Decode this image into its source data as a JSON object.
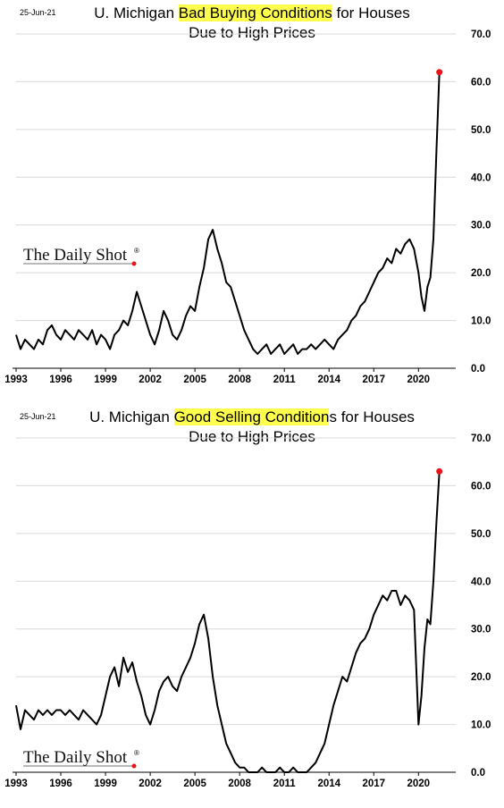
{
  "charts": [
    {
      "date": "25-Jun-21",
      "title_before": "U. Michigan ",
      "title_highlight": "Bad Buying Conditions",
      "title_after": " for Houses",
      "title_line2": "Due to High Prices",
      "brand": "The Daily Shot",
      "brand_mark": "®"
    },
    {
      "date": "25-Jun-21",
      "title_before": "U. Michigan ",
      "title_highlight": "Good Selling Condition",
      "title_after": "s for Houses",
      "title_line2": "Due to High Prices",
      "brand": "The Daily Shot",
      "brand_mark": "®"
    }
  ],
  "chart_data": [
    {
      "type": "line",
      "title": "U. Michigan Bad Buying Conditions for Houses Due to High Prices",
      "x_ticks": [
        "1993",
        "1996",
        "1999",
        "2002",
        "2005",
        "2008",
        "2011",
        "2014",
        "2017",
        "2020"
      ],
      "y_ticks": [
        "0.0",
        "10.0",
        "20.0",
        "30.0",
        "40.0",
        "50.0",
        "60.0",
        "70.0"
      ],
      "xlim": [
        1993,
        2022.5
      ],
      "ylim": [
        0,
        70
      ],
      "grid": true,
      "line_color": "#000000",
      "marker_color": "#e8141b",
      "series": [
        {
          "x": [
            1993,
            1993.3,
            1993.6,
            1993.9,
            1994.2,
            1994.5,
            1994.8,
            1995.1,
            1995.4,
            1995.7,
            1996,
            1996.3,
            1996.6,
            1996.9,
            1997.2,
            1997.5,
            1997.8,
            1998.1,
            1998.4,
            1998.7,
            1999,
            1999.3,
            1999.6,
            1999.9,
            2000.2,
            2000.5,
            2000.8,
            2001.1,
            2001.4,
            2001.7,
            2002,
            2002.3,
            2002.6,
            2002.9,
            2003.2,
            2003.5,
            2003.8,
            2004.1,
            2004.4,
            2004.7,
            2005,
            2005.3,
            2005.6,
            2005.9,
            2006.2,
            2006.5,
            2006.8,
            2007.1,
            2007.4,
            2007.7,
            2008,
            2008.3,
            2008.6,
            2008.9,
            2009.2,
            2009.5,
            2009.8,
            2010.1,
            2010.4,
            2010.7,
            2011,
            2011.3,
            2011.6,
            2011.9,
            2012.2,
            2012.5,
            2012.8,
            2013.1,
            2013.4,
            2013.7,
            2014,
            2014.3,
            2014.6,
            2014.9,
            2015.2,
            2015.5,
            2015.8,
            2016.1,
            2016.4,
            2016.7,
            2017,
            2017.3,
            2017.6,
            2017.9,
            2018.2,
            2018.5,
            2018.8,
            2019.1,
            2019.4,
            2019.7,
            2020,
            2020.2,
            2020.4,
            2020.6,
            2020.8,
            2021,
            2021.2,
            2021.4
          ],
          "y": [
            7,
            4,
            6,
            5,
            4,
            6,
            5,
            8,
            9,
            7,
            6,
            8,
            7,
            6,
            8,
            7,
            6,
            8,
            5,
            7,
            6,
            4,
            7,
            8,
            10,
            9,
            12,
            16,
            13,
            10,
            7,
            5,
            8,
            12,
            10,
            7,
            6,
            8,
            11,
            13,
            12,
            17,
            21,
            27,
            29,
            25,
            22,
            18,
            17,
            14,
            11,
            8,
            6,
            4,
            3,
            4,
            5,
            3,
            4,
            5,
            3,
            4,
            5,
            3,
            4,
            4,
            5,
            4,
            5,
            6,
            5,
            4,
            6,
            7,
            8,
            10,
            11,
            13,
            14,
            16,
            18,
            20,
            21,
            23,
            22,
            25,
            24,
            26,
            27,
            25,
            20,
            15,
            12,
            17,
            19,
            27,
            45,
            62
          ]
        }
      ],
      "last_point_marker": true
    },
    {
      "type": "line",
      "title": "U. Michigan Good Selling Conditions for Houses Due to High Prices",
      "x_ticks": [
        "1993",
        "1996",
        "1999",
        "2002",
        "2005",
        "2008",
        "2011",
        "2014",
        "2017",
        "2020"
      ],
      "y_ticks": [
        "0.0",
        "10.0",
        "20.0",
        "30.0",
        "40.0",
        "50.0",
        "60.0",
        "70.0"
      ],
      "xlim": [
        1993,
        2022.5
      ],
      "ylim": [
        0,
        70
      ],
      "grid": true,
      "line_color": "#000000",
      "marker_color": "#e8141b",
      "series": [
        {
          "x": [
            1993,
            1993.3,
            1993.6,
            1993.9,
            1994.2,
            1994.5,
            1994.8,
            1995.1,
            1995.4,
            1995.7,
            1996,
            1996.3,
            1996.6,
            1996.9,
            1997.2,
            1997.5,
            1997.8,
            1998.1,
            1998.4,
            1998.7,
            1999,
            1999.3,
            1999.6,
            1999.9,
            2000.2,
            2000.5,
            2000.8,
            2001.1,
            2001.4,
            2001.7,
            2002,
            2002.3,
            2002.6,
            2002.9,
            2003.2,
            2003.5,
            2003.8,
            2004.1,
            2004.4,
            2004.7,
            2005,
            2005.3,
            2005.6,
            2005.9,
            2006.2,
            2006.5,
            2006.8,
            2007.1,
            2007.4,
            2007.7,
            2008,
            2008.3,
            2008.6,
            2008.9,
            2009.2,
            2009.5,
            2009.8,
            2010.1,
            2010.4,
            2010.7,
            2011,
            2011.3,
            2011.6,
            2011.9,
            2012.2,
            2012.5,
            2012.8,
            2013.1,
            2013.4,
            2013.7,
            2014,
            2014.3,
            2014.6,
            2014.9,
            2015.2,
            2015.5,
            2015.8,
            2016.1,
            2016.4,
            2016.7,
            2017,
            2017.3,
            2017.6,
            2017.9,
            2018.2,
            2018.5,
            2018.8,
            2019.1,
            2019.4,
            2019.7,
            2020,
            2020.2,
            2020.4,
            2020.6,
            2020.8,
            2021,
            2021.2,
            2021.4
          ],
          "y": [
            14,
            9,
            13,
            12,
            11,
            13,
            12,
            13,
            12,
            13,
            13,
            12,
            13,
            12,
            11,
            13,
            12,
            11,
            10,
            12,
            16,
            20,
            22,
            18,
            24,
            21,
            23,
            19,
            16,
            12,
            10,
            13,
            17,
            19,
            20,
            18,
            17,
            20,
            22,
            24,
            27,
            31,
            33,
            28,
            20,
            14,
            10,
            6,
            4,
            2,
            1,
            1,
            0,
            0,
            0,
            1,
            0,
            0,
            0,
            1,
            0,
            0,
            1,
            0,
            0,
            0,
            1,
            2,
            4,
            6,
            10,
            14,
            17,
            20,
            19,
            22,
            25,
            27,
            28,
            30,
            33,
            35,
            37,
            36,
            38,
            38,
            35,
            37,
            36,
            34,
            10,
            16,
            26,
            32,
            31,
            40,
            52,
            63
          ]
        }
      ],
      "last_point_marker": true
    }
  ]
}
